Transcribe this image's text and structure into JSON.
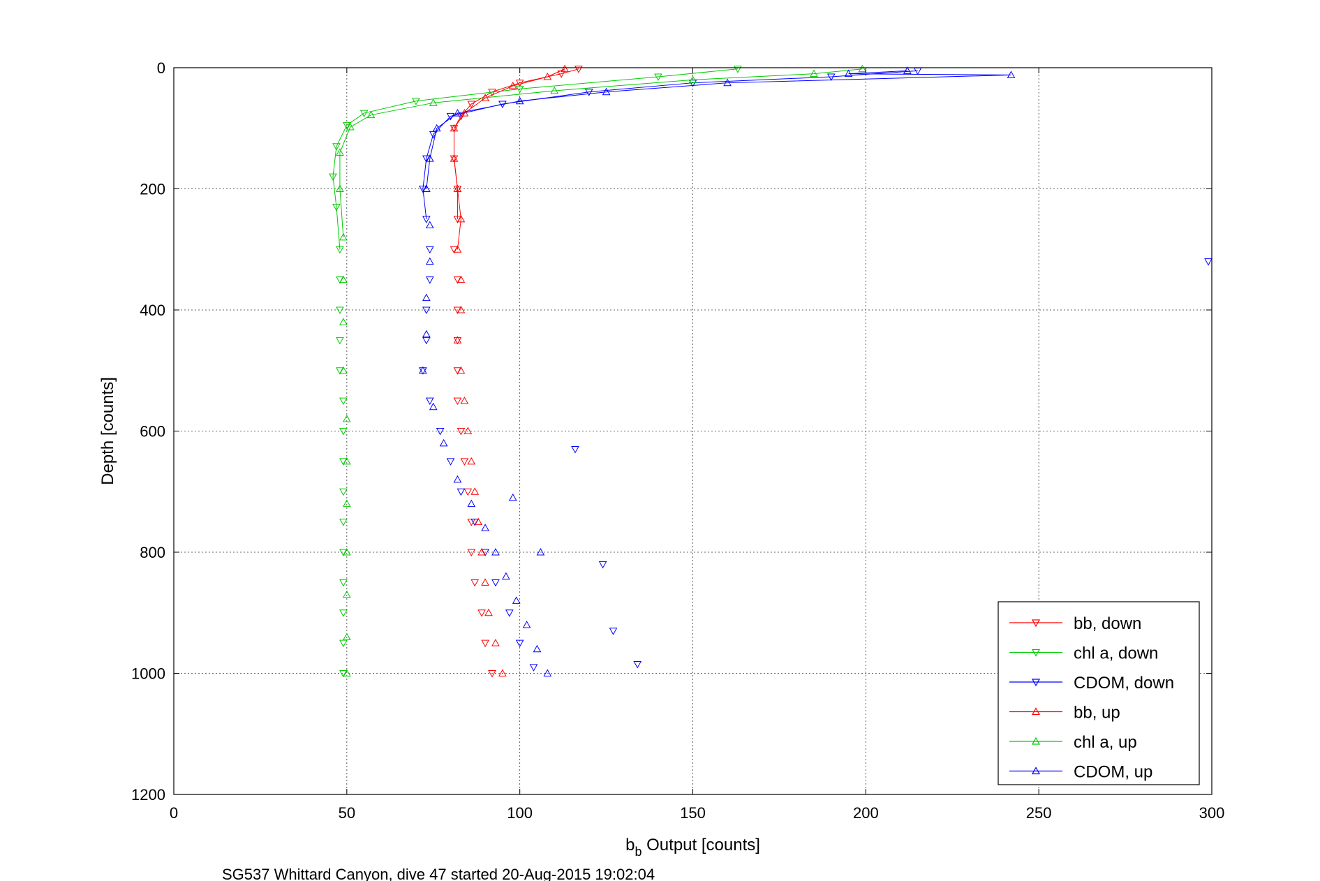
{
  "chart_data": {
    "type": "scatter",
    "xlabel_main": "b",
    "xlabel_sub": "b",
    "xlabel_rest": " Output [counts]",
    "ylabel": "Depth [counts]",
    "caption": "SG537 Whittard Canyon, dive 47 started 20-Aug-2015 19:02:04",
    "xlim": [
      0,
      300
    ],
    "ylim": [
      0,
      1200
    ],
    "y_reversed": true,
    "grid": true,
    "legend_position": "bottom-right",
    "xticks": [
      "0",
      "50",
      "100",
      "150",
      "200",
      "250",
      "300"
    ],
    "yticks": [
      "0",
      "200",
      "400",
      "600",
      "800",
      "1000",
      "1200"
    ],
    "series": [
      {
        "name": "bb, down",
        "color": "#ff0000",
        "marker": "triangle-down",
        "points": [
          [
            117,
            2
          ],
          [
            112,
            10
          ],
          [
            100,
            25
          ],
          [
            92,
            40
          ],
          [
            86,
            60
          ],
          [
            83,
            80
          ],
          [
            81,
            100
          ],
          [
            81,
            150
          ],
          [
            82,
            200
          ],
          [
            82,
            250
          ],
          [
            81,
            300
          ],
          [
            82,
            350
          ],
          [
            82,
            400
          ],
          [
            82,
            450
          ],
          [
            82,
            500
          ],
          [
            82,
            550
          ],
          [
            83,
            600
          ],
          [
            84,
            650
          ],
          [
            85,
            700
          ],
          [
            86,
            750
          ],
          [
            86,
            800
          ],
          [
            87,
            850
          ],
          [
            89,
            900
          ],
          [
            90,
            950
          ],
          [
            92,
            1000
          ]
        ]
      },
      {
        "name": "chl a, down",
        "color": "#00cc00",
        "marker": "triangle-down",
        "points": [
          [
            163,
            2
          ],
          [
            140,
            15
          ],
          [
            100,
            35
          ],
          [
            70,
            55
          ],
          [
            55,
            75
          ],
          [
            50,
            95
          ],
          [
            47,
            130
          ],
          [
            46,
            180
          ],
          [
            47,
            230
          ],
          [
            48,
            300
          ],
          [
            48,
            350
          ],
          [
            48,
            400
          ],
          [
            48,
            450
          ],
          [
            48,
            500
          ],
          [
            49,
            550
          ],
          [
            49,
            600
          ],
          [
            49,
            650
          ],
          [
            49,
            700
          ],
          [
            49,
            750
          ],
          [
            49,
            800
          ],
          [
            49,
            850
          ],
          [
            49,
            900
          ],
          [
            49,
            950
          ],
          [
            49,
            1000
          ]
        ]
      },
      {
        "name": "CDOM, down",
        "color": "#0000ff",
        "marker": "triangle-down",
        "points": [
          [
            215,
            5
          ],
          [
            190,
            15
          ],
          [
            150,
            25
          ],
          [
            120,
            40
          ],
          [
            95,
            60
          ],
          [
            80,
            80
          ],
          [
            75,
            110
          ],
          [
            73,
            150
          ],
          [
            72,
            200
          ],
          [
            73,
            250
          ],
          [
            74,
            300
          ],
          [
            74,
            350
          ],
          [
            73,
            400
          ],
          [
            73,
            450
          ],
          [
            72,
            500
          ],
          [
            74,
            550
          ],
          [
            77,
            600
          ],
          [
            80,
            650
          ],
          [
            83,
            700
          ],
          [
            87,
            750
          ],
          [
            90,
            800
          ],
          [
            93,
            850
          ],
          [
            97,
            900
          ],
          [
            100,
            950
          ],
          [
            104,
            990
          ],
          [
            116,
            630
          ],
          [
            124,
            820
          ],
          [
            127,
            930
          ],
          [
            134,
            985
          ],
          [
            299,
            320
          ]
        ]
      },
      {
        "name": "bb, up",
        "color": "#ff0000",
        "marker": "triangle-up",
        "points": [
          [
            113,
            2
          ],
          [
            108,
            15
          ],
          [
            98,
            30
          ],
          [
            90,
            50
          ],
          [
            84,
            75
          ],
          [
            81,
            100
          ],
          [
            81,
            150
          ],
          [
            82,
            200
          ],
          [
            83,
            250
          ],
          [
            82,
            300
          ],
          [
            83,
            350
          ],
          [
            83,
            400
          ],
          [
            82,
            450
          ],
          [
            83,
            500
          ],
          [
            84,
            550
          ],
          [
            85,
            600
          ],
          [
            86,
            650
          ],
          [
            87,
            700
          ],
          [
            88,
            750
          ],
          [
            89,
            800
          ],
          [
            90,
            850
          ],
          [
            91,
            900
          ],
          [
            93,
            950
          ],
          [
            95,
            1000
          ]
        ]
      },
      {
        "name": "chl a, up",
        "color": "#00cc00",
        "marker": "triangle-up",
        "points": [
          [
            199,
            2
          ],
          [
            185,
            10
          ],
          [
            150,
            20
          ],
          [
            110,
            38
          ],
          [
            75,
            58
          ],
          [
            57,
            78
          ],
          [
            51,
            98
          ],
          [
            48,
            140
          ],
          [
            48,
            200
          ],
          [
            49,
            280
          ],
          [
            49,
            350
          ],
          [
            49,
            420
          ],
          [
            49,
            500
          ],
          [
            50,
            580
          ],
          [
            50,
            650
          ],
          [
            50,
            720
          ],
          [
            50,
            800
          ],
          [
            50,
            870
          ],
          [
            50,
            940
          ],
          [
            50,
            1000
          ]
        ]
      },
      {
        "name": "CDOM, up",
        "color": "#0000ff",
        "marker": "triangle-up",
        "points": [
          [
            242,
            12
          ],
          [
            212,
            5
          ],
          [
            195,
            10
          ],
          [
            160,
            25
          ],
          [
            125,
            40
          ],
          [
            100,
            55
          ],
          [
            82,
            75
          ],
          [
            76,
            100
          ],
          [
            74,
            150
          ],
          [
            73,
            200
          ],
          [
            74,
            260
          ],
          [
            74,
            320
          ],
          [
            73,
            380
          ],
          [
            73,
            440
          ],
          [
            72,
            500
          ],
          [
            75,
            560
          ],
          [
            78,
            620
          ],
          [
            82,
            680
          ],
          [
            86,
            720
          ],
          [
            90,
            760
          ],
          [
            93,
            800
          ],
          [
            96,
            840
          ],
          [
            99,
            880
          ],
          [
            102,
            920
          ],
          [
            105,
            960
          ],
          [
            108,
            1000
          ],
          [
            98,
            710
          ],
          [
            106,
            800
          ]
        ]
      }
    ]
  }
}
